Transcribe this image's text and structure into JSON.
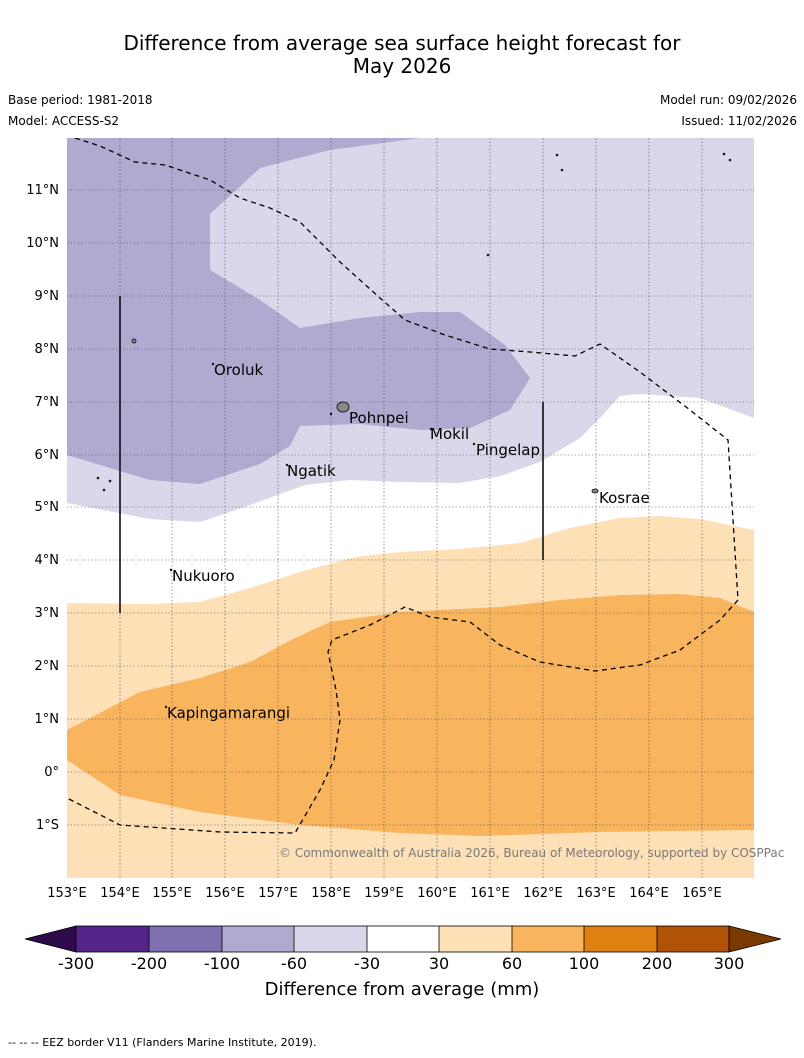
{
  "title_line1": "Difference from average sea surface height forecast for",
  "title_line2": "May 2026",
  "meta": {
    "base_period": "Base period: 1981-2018",
    "model": "Model: ACCESS-S2",
    "model_run": "Model run: 09/02/2026",
    "issued": "Issued: 11/02/2026"
  },
  "map": {
    "lon_labels": [
      "153°E",
      "154°E",
      "155°E",
      "156°E",
      "157°E",
      "158°E",
      "159°E",
      "160°E",
      "161°E",
      "162°E",
      "163°E",
      "164°E",
      "165°E"
    ],
    "lat_labels": [
      "11°N",
      "10°N",
      "9°N",
      "8°N",
      "7°N",
      "6°N",
      "5°N",
      "4°N",
      "3°N",
      "2°N",
      "1°N",
      "0°",
      "1°S"
    ],
    "places": {
      "oroluk": "Oroluk",
      "pohnpei": "Pohnpei",
      "mokil": "Mokil",
      "pingelap": "Pingelap",
      "ngatik": "Ngatik",
      "kosrae": "Kosrae",
      "nukuoro": "Nukuoro",
      "kapingamarangi": "Kapingamarangi"
    },
    "copyright": "© Commonwealth of Australia 2026, Bureau of Meteorology, supported by COSPPac"
  },
  "colorbar": {
    "ticks": [
      "-300",
      "-200",
      "-100",
      "-60",
      "-30",
      "30",
      "60",
      "100",
      "200",
      "300"
    ],
    "label": "Difference from average (mm)",
    "colors": {
      "below_min": "#2e0b4b",
      "b1": "#55248a",
      "b2": "#7e6fae",
      "b3": "#aeaad0",
      "b4": "#d8d8ea",
      "b5": "#ffffff",
      "b6": "#fde0b6",
      "b7": "#f9b45e",
      "b8": "#e07f12",
      "b9": "#b05306",
      "above_max": "#7b3900"
    }
  },
  "footer": "--  --  -- EEZ border V11 (Flanders Marine Institute, 2019)."
}
